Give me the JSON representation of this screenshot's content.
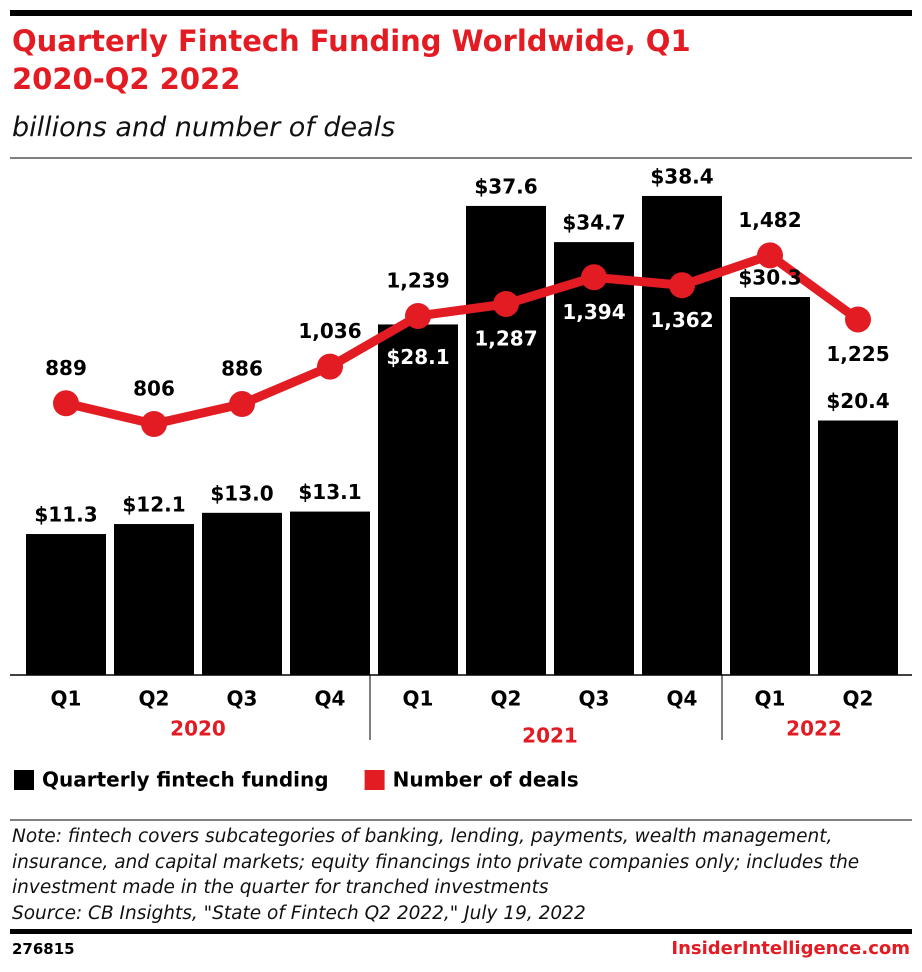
{
  "chart_data": {
    "type": "bar",
    "title": "Quarterly Fintech Funding Worldwide, Q1 2020-Q2 2022",
    "subtitle": "billions and number of deals",
    "categories": [
      "Q1",
      "Q2",
      "Q3",
      "Q4",
      "Q1",
      "Q2",
      "Q3",
      "Q4",
      "Q1",
      "Q2"
    ],
    "groups": [
      {
        "name": "2020",
        "size": 4
      },
      {
        "name": "2021",
        "size": 4
      },
      {
        "name": "2022",
        "size": 2
      }
    ],
    "series": [
      {
        "name": "Quarterly fintech funding",
        "type": "bar",
        "color": "#000000",
        "values": [
          11.3,
          12.1,
          13.0,
          13.1,
          28.1,
          37.6,
          34.7,
          38.4,
          30.3,
          20.4
        ],
        "value_labels": [
          "$11.3",
          "$12.1",
          "$13.0",
          "$13.1",
          "$28.1",
          "$37.6",
          "$34.7",
          "$38.4",
          "$30.3",
          "$20.4"
        ]
      },
      {
        "name": "Number of deals",
        "type": "line",
        "axis": "y2",
        "color": "#e31b23",
        "values": [
          889,
          806,
          886,
          1036,
          1239,
          1287,
          1394,
          1362,
          1482,
          1225
        ],
        "value_labels": [
          "889",
          "806",
          "886",
          "1,036",
          "1,239",
          "1,287",
          "1,394",
          "1,362",
          "1,482",
          "1,225"
        ]
      }
    ],
    "ylim": [
      0,
      40
    ],
    "y2lim": [
      -200,
      1800
    ],
    "note": "Note: fintech covers subcategories of banking, lending, payments, wealth management, insurance, and capital markets; equity financings into private companies only; includes the investment made in the quarter for tranched investments",
    "source": "Source: CB Insights, \"State of Fintech Q2 2022,\" July 19, 2022",
    "chart_id": "276815",
    "brand": "InsiderIntelligence.com"
  }
}
